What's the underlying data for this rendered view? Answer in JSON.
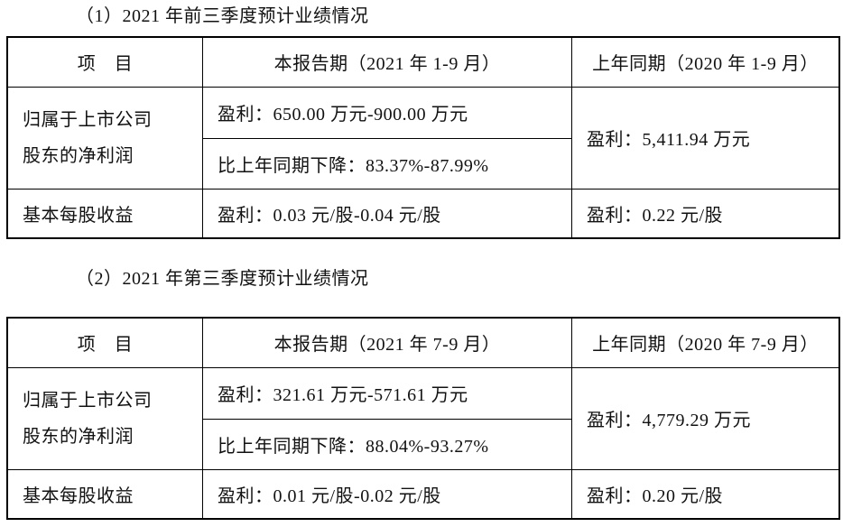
{
  "document": {
    "background": "#ffffff",
    "text_color": "#111111",
    "border_color": "#000000"
  },
  "sections": [
    {
      "heading": "（1）2021 年前三季度预计业绩情况",
      "table": {
        "headers": [
          "项　目",
          "本报告期（2021 年 1-9 月）",
          "上年同期（2020 年 1-9 月）"
        ],
        "net_profit": {
          "label": "归属于上市公司\n股东的净利润",
          "current_profit": "盈利：650.00 万元-900.00 万元",
          "yoy_change": "比上年同期下降：83.37%-87.99%",
          "prior_profit": "盈利：5,411.94 万元"
        },
        "eps": {
          "label": "基本每股收益",
          "current": "盈利：0.03 元/股-0.04 元/股",
          "prior": "盈利：0.22 元/股"
        }
      }
    },
    {
      "heading": "（2）2021 年第三季度预计业绩情况",
      "table": {
        "headers": [
          "项　目",
          "本报告期（2021 年 7-9 月）",
          "上年同期（2020 年 7-9 月）"
        ],
        "net_profit": {
          "label": "归属于上市公司\n股东的净利润",
          "current_profit": "盈利：321.61 万元-571.61 万元",
          "yoy_change": "比上年同期下降：88.04%-93.27%",
          "prior_profit": "盈利：4,779.29 万元"
        },
        "eps": {
          "label": "基本每股收益",
          "current": "盈利：0.01 元/股-0.02 元/股",
          "prior": "盈利：0.20 元/股"
        }
      }
    }
  ]
}
